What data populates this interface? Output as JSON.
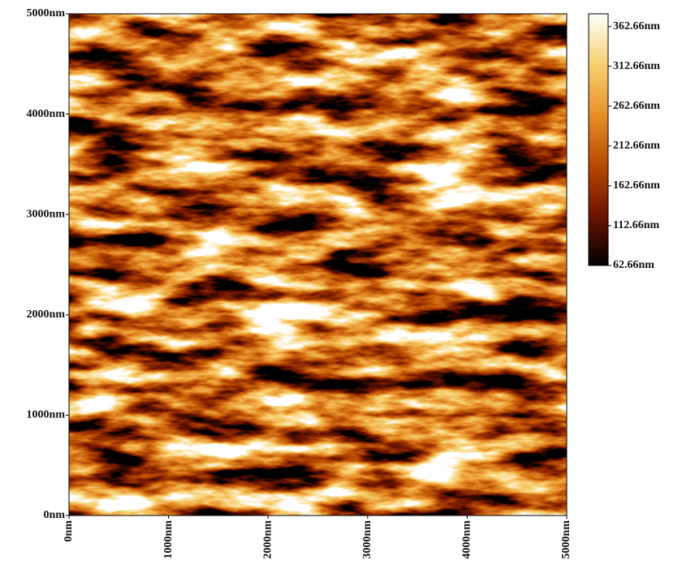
{
  "chart_data": {
    "type": "heatmap",
    "xlim": [
      0,
      5000
    ],
    "ylim": [
      0,
      5000
    ],
    "xticks": [
      {
        "value": 0,
        "label": "0nm"
      },
      {
        "value": 1000,
        "label": "1000nm"
      },
      {
        "value": 2000,
        "label": "2000nm"
      },
      {
        "value": 3000,
        "label": "3000nm"
      },
      {
        "value": 4000,
        "label": "4000nm"
      },
      {
        "value": 5000,
        "label": "5000nm"
      }
    ],
    "yticks": [
      {
        "value": 0,
        "label": "0nm"
      },
      {
        "value": 1000,
        "label": "1000nm"
      },
      {
        "value": 2000,
        "label": "2000nm"
      },
      {
        "value": 3000,
        "label": "3000nm"
      },
      {
        "value": 4000,
        "label": "4000nm"
      },
      {
        "value": 5000,
        "label": "5000nm"
      }
    ],
    "colorbar": {
      "lim": [
        62.66,
        378.66
      ],
      "ticks": [
        {
          "value": 62.66,
          "label": "62.66nm"
        },
        {
          "value": 112.66,
          "label": "112.66nm"
        },
        {
          "value": 162.66,
          "label": "162.66nm"
        },
        {
          "value": 212.66,
          "label": "212.66nm"
        },
        {
          "value": 262.66,
          "label": "262.66nm"
        },
        {
          "value": 312.66,
          "label": "312.66nm"
        },
        {
          "value": 362.66,
          "label": "362.66nm"
        }
      ]
    },
    "colormap": [
      "#000000",
      "#6e1400",
      "#b84a00",
      "#e8902a",
      "#f8d070",
      "#ffffff"
    ]
  }
}
